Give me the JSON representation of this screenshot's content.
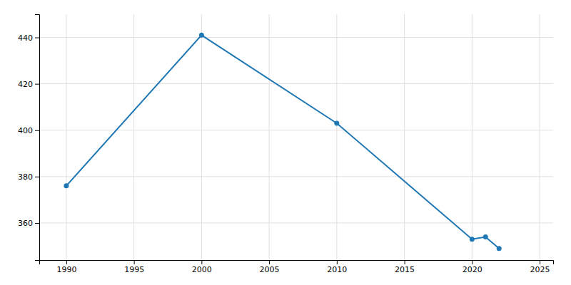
{
  "chart_data": {
    "type": "line",
    "x": [
      1990,
      2000,
      2010,
      2020,
      2021,
      2022
    ],
    "values": [
      376,
      441,
      403,
      353,
      354,
      349
    ],
    "xlim": [
      1988,
      2026
    ],
    "ylim": [
      344,
      450
    ],
    "xticks": [
      1990,
      1995,
      2000,
      2005,
      2010,
      2015,
      2020,
      2025
    ],
    "yticks": [
      360,
      380,
      400,
      420,
      440
    ],
    "grid": true,
    "marker": "circle"
  }
}
